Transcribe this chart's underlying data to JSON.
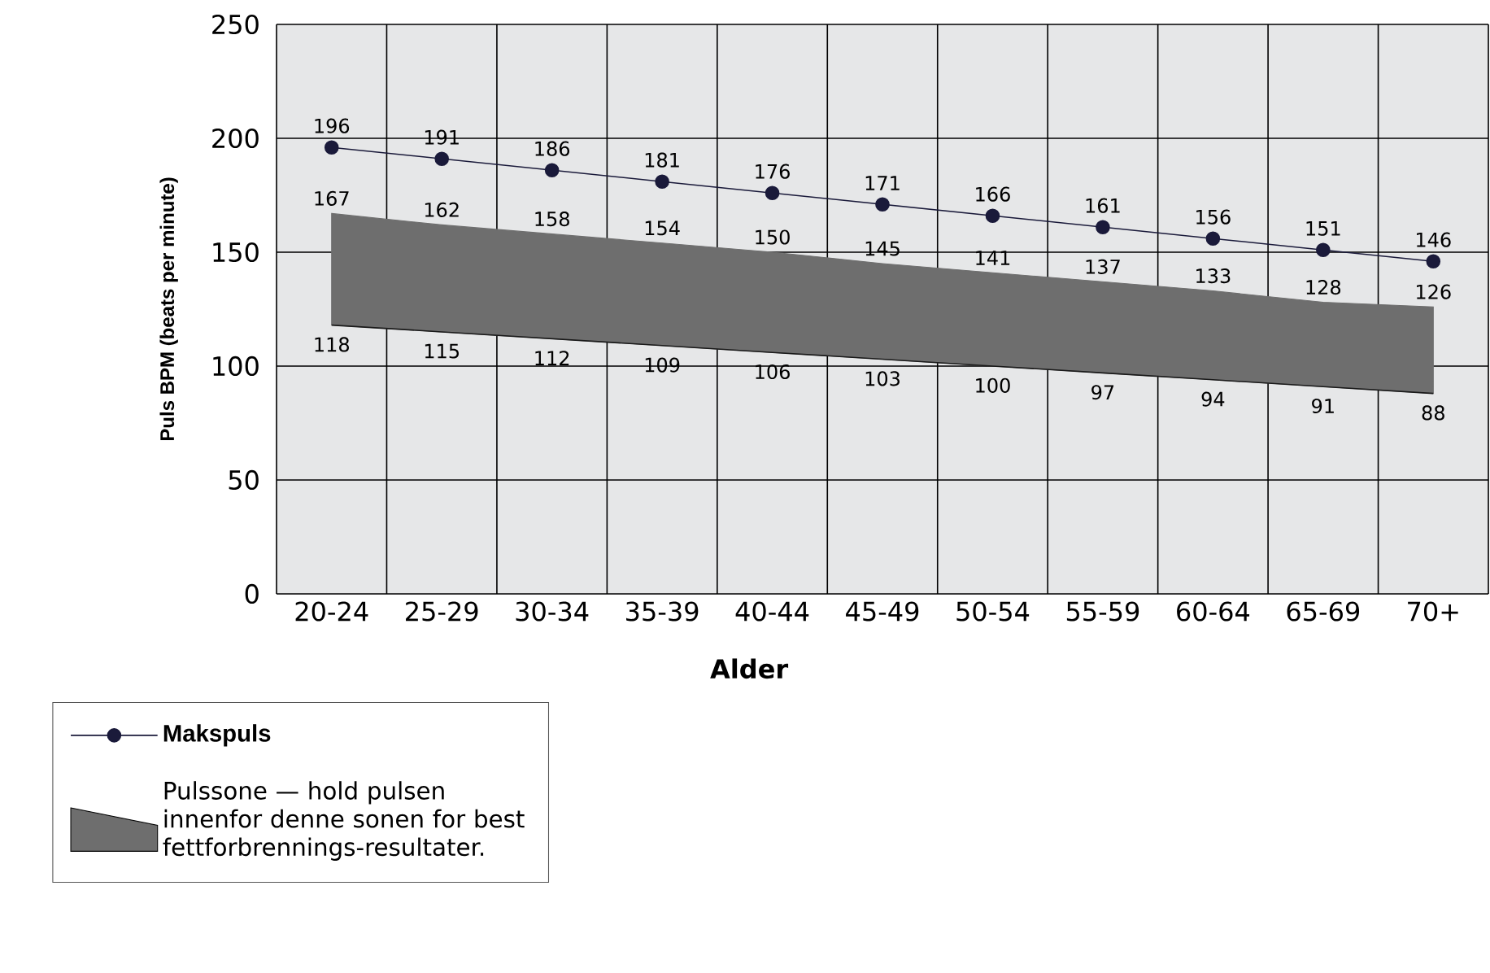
{
  "chart_data": {
    "type": "line",
    "xlabel": "Alder",
    "ylabel": "Puls BPM (beats per minute)",
    "categories": [
      "20-24",
      "25-29",
      "30-34",
      "35-39",
      "40-44",
      "45-49",
      "50-54",
      "55-59",
      "60-64",
      "65-69",
      "70+"
    ],
    "series": [
      {
        "name": "Makspuls",
        "type": "line",
        "color": "#1a1a3a",
        "marker": "circle",
        "values": [
          196,
          191,
          186,
          181,
          176,
          171,
          166,
          161,
          156,
          151,
          146
        ]
      },
      {
        "name": "Pulssone — hold pulsen innenfor denne sonen for best fettforbrennings-resultater.",
        "type": "area",
        "color": "#6e6e6e",
        "values": [
          167,
          162,
          158,
          154,
          150,
          145,
          141,
          137,
          133,
          128,
          126
        ]
      },
      {
        "color": "#1a1a1a",
        "values": [
          118,
          115,
          112,
          109,
          106,
          103,
          100,
          97,
          94,
          91,
          88
        ]
      }
    ],
    "ylim": [
      0,
      250
    ],
    "yticks": [
      0,
      50,
      100,
      150,
      200,
      250
    ],
    "grid": true,
    "legend": "bottom left",
    "data_labels": true
  }
}
